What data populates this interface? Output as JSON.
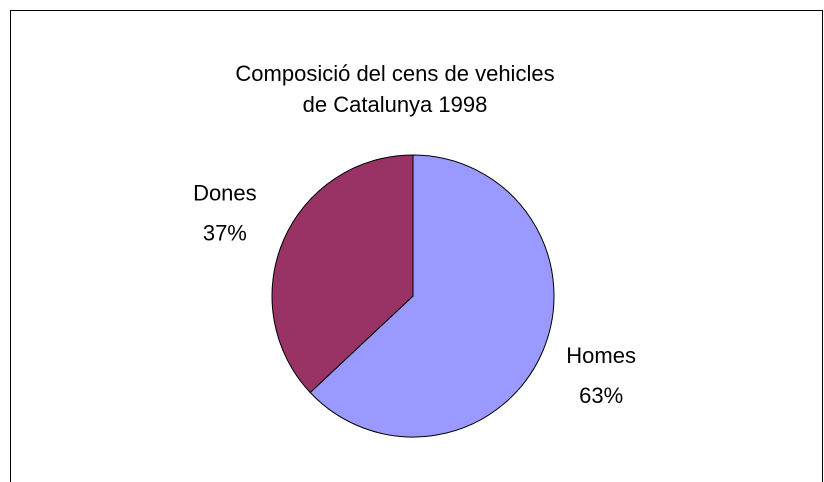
{
  "chart_data": {
    "type": "pie",
    "title": [
      "Composició del cens de vehicles",
      "de Catalunya 1998"
    ],
    "categories": [
      "Homes",
      "Dones"
    ],
    "values": [
      63,
      37
    ],
    "value_labels": [
      "63%",
      "37%"
    ],
    "colors": [
      "#9999ff",
      "#993366"
    ]
  }
}
